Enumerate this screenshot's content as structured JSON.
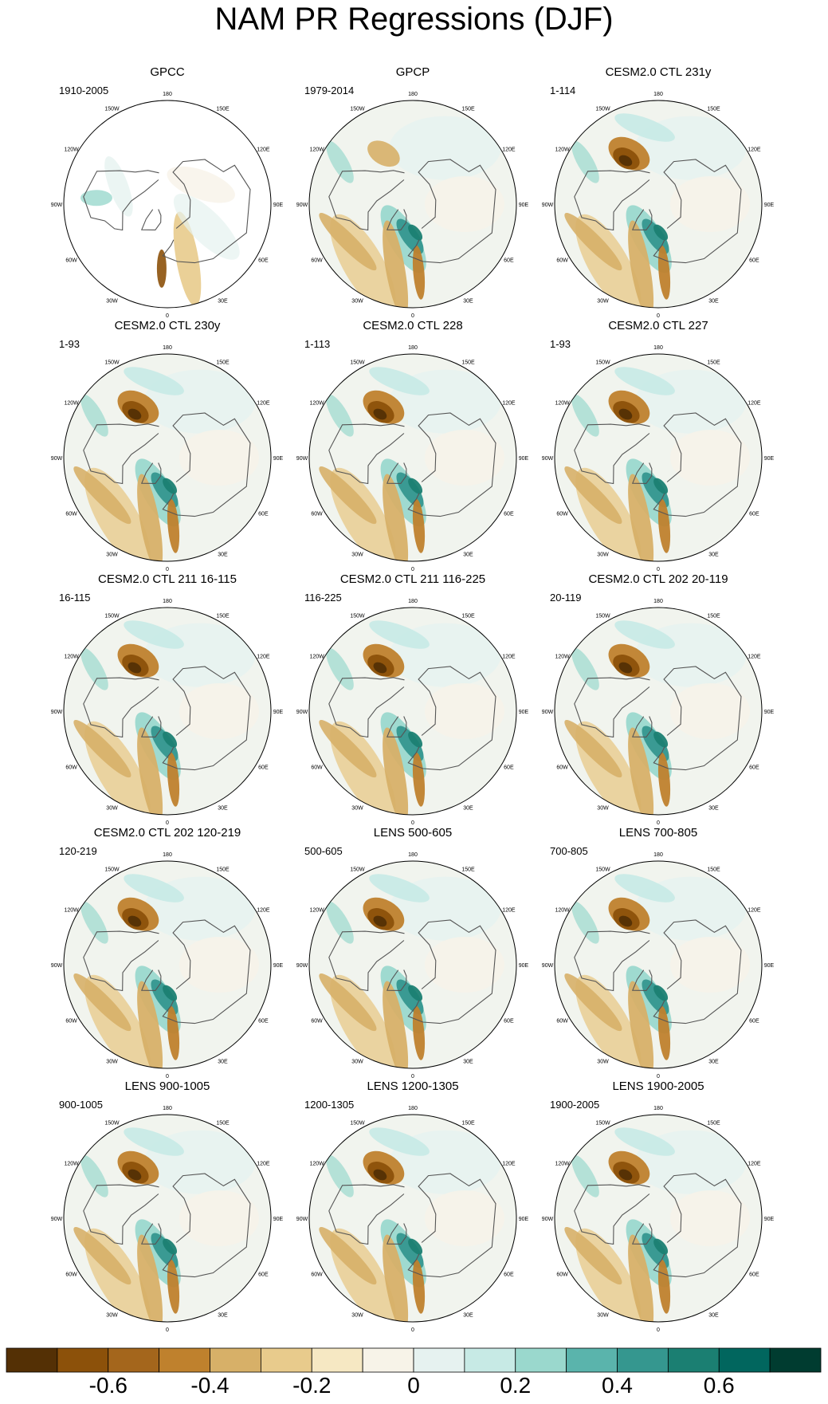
{
  "title": "NAM PR Regressions (DJF)",
  "lon_labels": [
    "180",
    "150E",
    "120E",
    "90E",
    "60E",
    "30E",
    "0",
    "30W",
    "60W",
    "90W",
    "120W",
    "150W"
  ],
  "panels": [
    {
      "title": "GPCC",
      "period": "1910-2005",
      "style": "gpcc"
    },
    {
      "title": "GPCP",
      "period": "1979-2014",
      "style": "obs"
    },
    {
      "title": "CESM2.0 CTL 231y",
      "period": "1-114",
      "style": "model"
    },
    {
      "title": "CESM2.0 CTL 230y",
      "period": "1-93",
      "style": "model"
    },
    {
      "title": "CESM2.0 CTL 228",
      "period": "1-113",
      "style": "model"
    },
    {
      "title": "CESM2.0 CTL 227",
      "period": "1-93",
      "style": "model"
    },
    {
      "title": "CESM2.0 CTL 211 16-115",
      "period": "16-115",
      "style": "model"
    },
    {
      "title": "CESM2.0 CTL 211 116-225",
      "period": "116-225",
      "style": "model"
    },
    {
      "title": "CESM2.0 CTL 202 20-119",
      "period": "20-119",
      "style": "model"
    },
    {
      "title": "CESM2.0 CTL 202 120-219",
      "period": "120-219",
      "style": "model"
    },
    {
      "title": "LENS 500-605",
      "period": "500-605",
      "style": "model"
    },
    {
      "title": "LENS 700-805",
      "period": "700-805",
      "style": "model"
    },
    {
      "title": "LENS 900-1005",
      "period": "900-1005",
      "style": "model"
    },
    {
      "title": "LENS 1200-1305",
      "period": "1200-1305",
      "style": "model"
    },
    {
      "title": "LENS 1900-2005",
      "period": "1900-2005",
      "style": "model"
    }
  ],
  "colorbar": {
    "colors": [
      "#543005",
      "#8c510a",
      "#a4661c",
      "#bf812d",
      "#d7b068",
      "#e8cb8c",
      "#f6e8c3",
      "#f7f3e8",
      "#e6f2f0",
      "#c7eae5",
      "#9ad8cd",
      "#5ab4ac",
      "#35978f",
      "#1b7f72",
      "#01665e",
      "#003c30"
    ],
    "tick_values": [
      -0.6,
      -0.4,
      -0.2,
      0,
      0.2,
      0.4,
      0.6
    ],
    "tick_labels": [
      "-0.6",
      "-0.4",
      "-0.2",
      "0",
      "0.2",
      "0.4",
      "0.6"
    ]
  }
}
